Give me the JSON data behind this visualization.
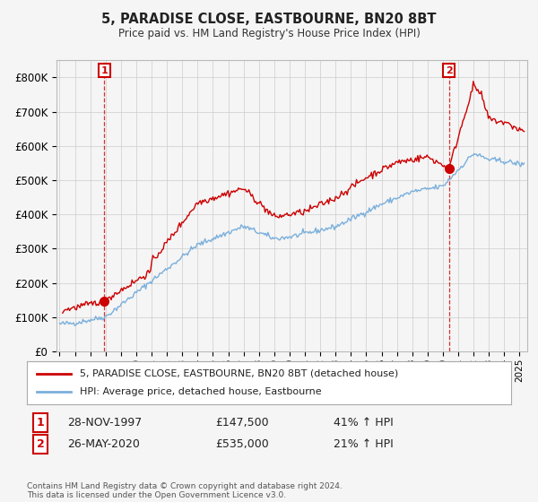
{
  "title1": "5, PARADISE CLOSE, EASTBOURNE, BN20 8BT",
  "title2": "Price paid vs. HM Land Registry's House Price Index (HPI)",
  "ylim": [
    0,
    850000
  ],
  "yticks": [
    0,
    100000,
    200000,
    300000,
    400000,
    500000,
    600000,
    700000,
    800000
  ],
  "ytick_labels": [
    "£0",
    "£100K",
    "£200K",
    "£300K",
    "£400K",
    "£500K",
    "£600K",
    "£700K",
    "£800K"
  ],
  "xlim_start": 1994.8,
  "xlim_end": 2025.5,
  "marker1_x": 1997.91,
  "marker1_y": 147500,
  "marker2_x": 2020.4,
  "marker2_y": 535000,
  "line1_color": "#cc0000",
  "line2_color": "#7aafdc",
  "marker_color": "#cc0000",
  "grid_color": "#cccccc",
  "bg_color": "#f5f5f5",
  "legend_line1": "5, PARADISE CLOSE, EASTBOURNE, BN20 8BT (detached house)",
  "legend_line2": "HPI: Average price, detached house, Eastbourne",
  "annotation1_label": "1",
  "annotation1_date": "28-NOV-1997",
  "annotation1_price": "£147,500",
  "annotation1_hpi": "41% ↑ HPI",
  "annotation2_label": "2",
  "annotation2_date": "26-MAY-2020",
  "annotation2_price": "£535,000",
  "annotation2_hpi": "21% ↑ HPI",
  "footnote": "Contains HM Land Registry data © Crown copyright and database right 2024.\nThis data is licensed under the Open Government Licence v3.0."
}
